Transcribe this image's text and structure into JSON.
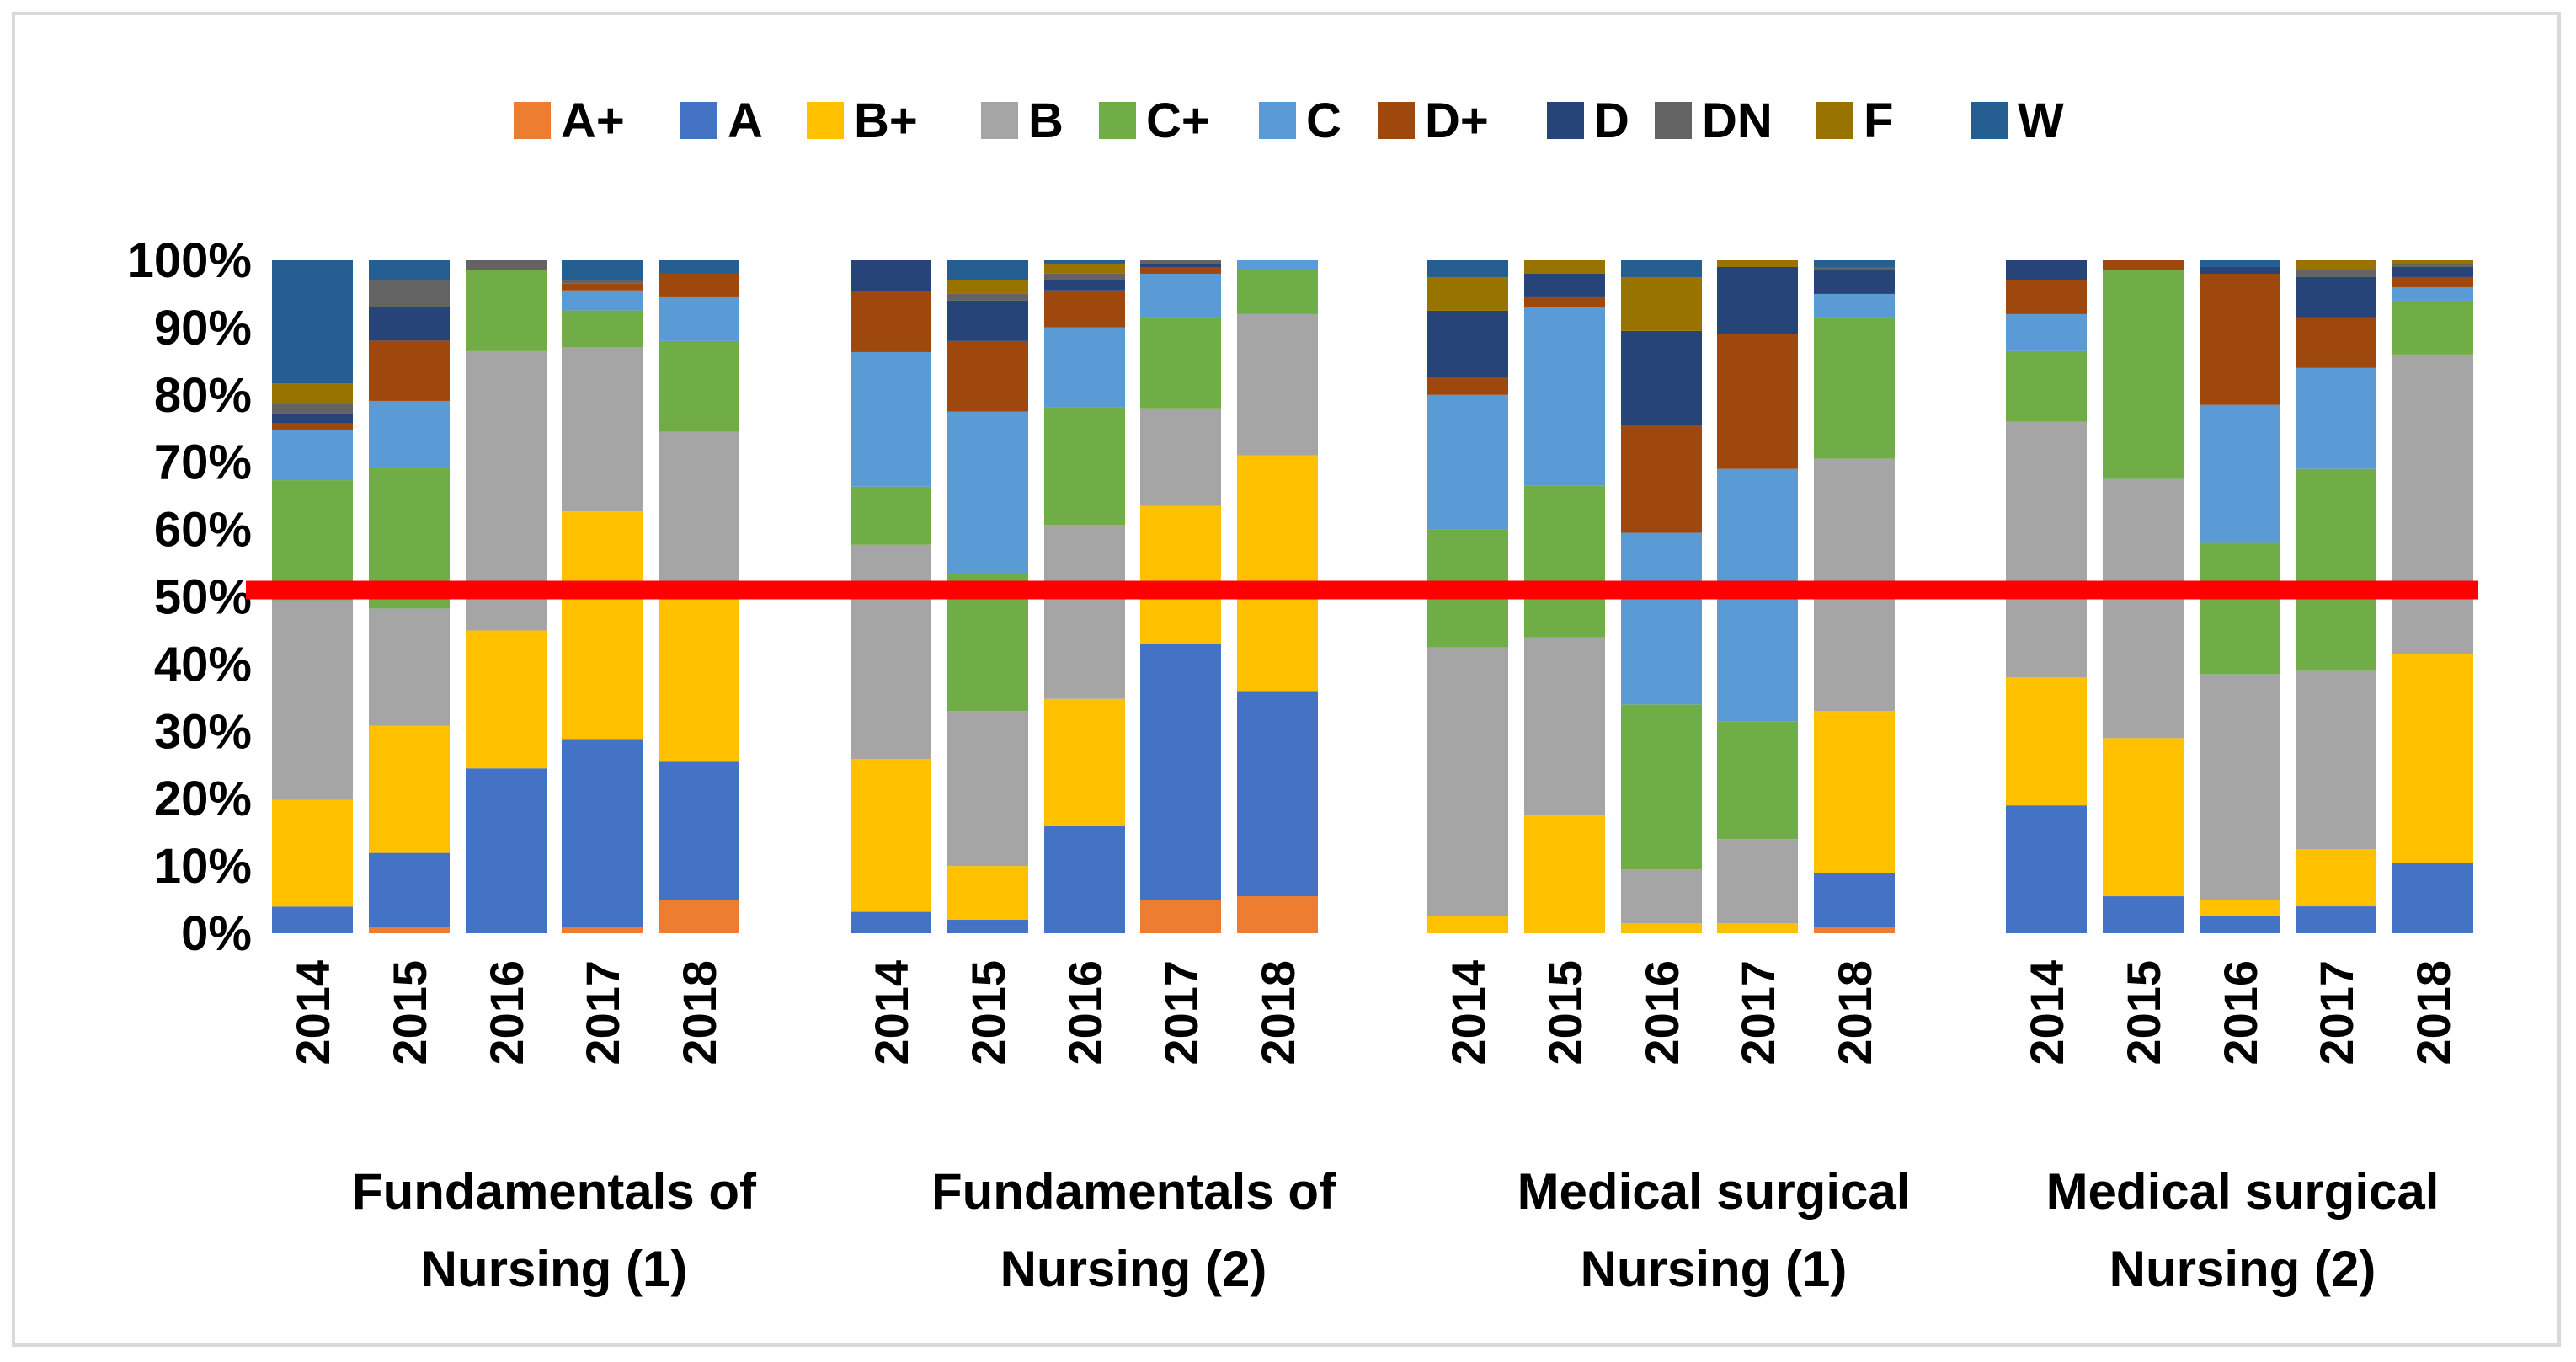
{
  "chart_data": {
    "type": "bar",
    "stacked": true,
    "normalized": true,
    "title": "",
    "xlabel": "",
    "ylabel": "",
    "ylim": [
      0,
      100
    ],
    "y_ticks": [
      "0%",
      "10%",
      "20%",
      "30%",
      "40%",
      "50%",
      "60%",
      "70%",
      "80%",
      "90%",
      "100%"
    ],
    "grid": false,
    "legend_position": "top",
    "legend": [
      {
        "name": "A+",
        "color": "#ED7D31"
      },
      {
        "name": "A",
        "color": "#4472C4"
      },
      {
        "name": "B+",
        "color": "#FFC000"
      },
      {
        "name": "B",
        "color": "#A5A5A5"
      },
      {
        "name": "C+",
        "color": "#70AD47"
      },
      {
        "name": "C",
        "color": "#5B9BD5"
      },
      {
        "name": "D+",
        "color": "#9E480E"
      },
      {
        "name": "D",
        "color": "#264478"
      },
      {
        "name": "DN",
        "color": "#636363"
      },
      {
        "name": "F",
        "color": "#997300"
      },
      {
        "name": "W",
        "color": "#255E91"
      }
    ],
    "reference_line": {
      "value": 51,
      "color": "#FF0000"
    },
    "groups": [
      {
        "label_line1": "Fundamentals of",
        "label_line2": "Nursing (1)",
        "bars": [
          {
            "year": "2014",
            "values": [
              0,
              4,
              16,
              30,
              18,
              7.5,
              1,
              1.5,
              1.5,
              3,
              18.5
            ]
          },
          {
            "year": "2015",
            "values": [
              1,
              11,
              19,
              17.5,
              21,
              10,
              9,
              5,
              4,
              0,
              3
            ]
          },
          {
            "year": "2016",
            "values": [
              0,
              24.5,
              20.5,
              41.5,
              12,
              0,
              0,
              0,
              1.5,
              0,
              0
            ]
          },
          {
            "year": "2017",
            "values": [
              1,
              28,
              34,
              24.5,
              5.5,
              3,
              1,
              0,
              0.5,
              0,
              3
            ]
          },
          {
            "year": "2018",
            "values": [
              5,
              20.5,
              25,
              24,
              13.5,
              6.5,
              3.5,
              0,
              0,
              0,
              2
            ]
          }
        ]
      },
      {
        "label_line1": "Fundamentals of",
        "label_line2": "Nursing (2)",
        "bars": [
          {
            "year": "2014",
            "values": [
              0,
              3.5,
              25,
              35,
              9.5,
              22,
              10,
              5,
              0,
              0,
              0
            ]
          },
          {
            "year": "2015",
            "values": [
              0,
              2,
              8,
              23,
              20.5,
              24,
              10.5,
              6,
              1,
              2,
              3
            ]
          },
          {
            "year": "2016",
            "values": [
              0,
              16,
              19,
              26,
              17.5,
              12,
              5.5,
              1.5,
              1,
              1.5,
              0.5
            ]
          },
          {
            "year": "2017",
            "values": [
              5,
              38,
              20.5,
              14.5,
              13.5,
              6.5,
              1,
              0.5,
              0.5,
              0,
              0
            ]
          },
          {
            "year": "2018",
            "values": [
              5.5,
              30.5,
              35,
              21,
              6.5,
              1.5,
              0,
              0,
              0,
              0,
              0
            ]
          }
        ]
      },
      {
        "label_line1": "Medical surgical",
        "label_line2": "Nursing (1)",
        "bars": [
          {
            "year": "2014",
            "values": [
              0,
              0,
              2.5,
              40,
              17.5,
              20,
              2.5,
              10,
              0,
              5,
              2.5
            ]
          },
          {
            "year": "2015",
            "values": [
              0,
              0,
              17.5,
              26.5,
              22.5,
              26.5,
              1.5,
              3.5,
              0,
              2,
              0
            ]
          },
          {
            "year": "2016",
            "values": [
              0,
              0,
              1.5,
              8,
              24.5,
              25.5,
              16,
              14,
              0,
              8,
              2.5
            ]
          },
          {
            "year": "2017",
            "values": [
              0,
              0,
              1.5,
              12.5,
              17.5,
              37.5,
              20,
              10,
              0,
              1,
              0
            ]
          },
          {
            "year": "2018",
            "values": [
              1,
              8,
              24,
              37.5,
              21,
              3.5,
              0,
              3.5,
              0.5,
              0,
              1
            ]
          }
        ]
      },
      {
        "label_line1": "Medical surgical",
        "label_line2": "Nursing (2)",
        "bars": [
          {
            "year": "2014",
            "values": [
              0,
              19,
              19,
              38,
              10.5,
              5.5,
              5,
              3,
              0,
              0,
              0
            ]
          },
          {
            "year": "2015",
            "values": [
              0,
              5.5,
              23.5,
              38.5,
              31,
              0,
              1.5,
              0,
              0,
              0,
              0
            ]
          },
          {
            "year": "2016",
            "values": [
              0,
              2.5,
              2.5,
              33.5,
              19.5,
              20.5,
              19.5,
              1,
              0,
              0,
              1
            ]
          },
          {
            "year": "2017",
            "values": [
              0,
              4,
              8.5,
              26.5,
              30,
              15,
              7.5,
              6,
              1,
              1.5,
              0
            ]
          },
          {
            "year": "2018",
            "values": [
              0,
              10.5,
              31,
              44.5,
              8,
              2,
              1.5,
              1.5,
              0.5,
              0.5,
              0
            ]
          }
        ]
      }
    ]
  }
}
